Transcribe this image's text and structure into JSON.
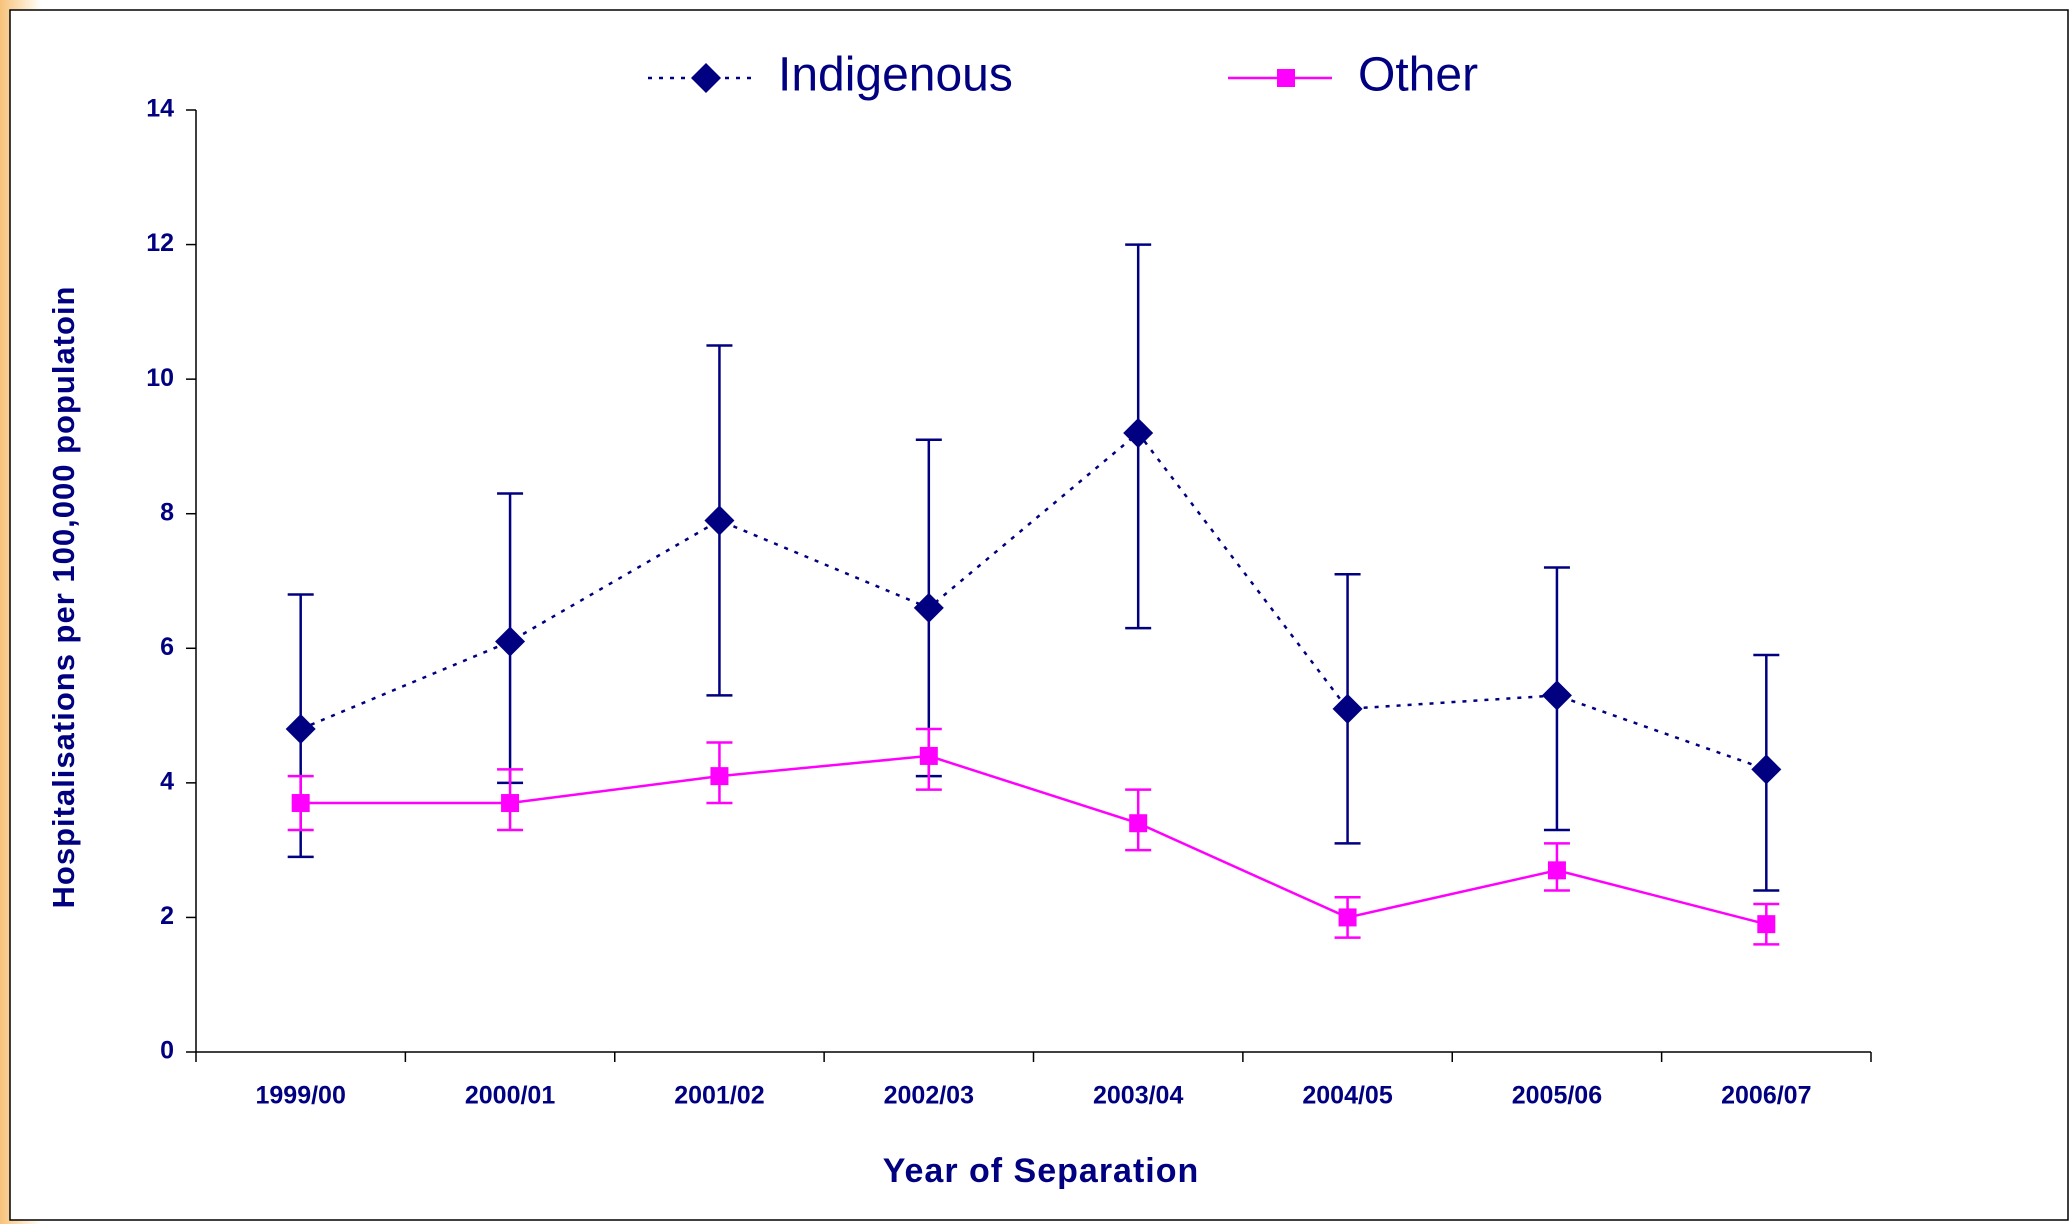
{
  "chart_data": {
    "type": "line",
    "x_label": "Year of Separation",
    "y_label": "Hospitalisations per 100,000 populatoin",
    "categories": [
      "1999/00",
      "2000/01",
      "2001/02",
      "2002/03",
      "2003/04",
      "2004/05",
      "2005/06",
      "2006/07"
    ],
    "series": [
      {
        "name": "Indigenous",
        "color": "#000080",
        "line_style": "dotted",
        "marker": "diamond",
        "values": [
          4.8,
          6.1,
          7.9,
          6.6,
          9.2,
          5.1,
          5.3,
          4.2
        ],
        "ci_low": [
          2.9,
          4.0,
          5.3,
          4.1,
          6.3,
          3.1,
          3.3,
          2.4
        ],
        "ci_high": [
          6.8,
          8.3,
          10.5,
          9.1,
          12.0,
          7.1,
          7.2,
          5.9
        ]
      },
      {
        "name": "Other",
        "color": "#ff00ff",
        "line_style": "solid",
        "marker": "square",
        "values": [
          3.7,
          3.7,
          4.1,
          4.4,
          3.4,
          2.0,
          2.7,
          1.9
        ],
        "ci_low": [
          3.3,
          3.3,
          3.7,
          3.9,
          3.0,
          1.7,
          2.4,
          1.6
        ],
        "ci_high": [
          4.1,
          4.2,
          4.6,
          4.8,
          3.9,
          2.3,
          3.1,
          2.2
        ]
      }
    ],
    "ylim": [
      0,
      14
    ],
    "yticks": [
      0,
      2,
      4,
      6,
      8,
      10,
      12,
      14
    ],
    "grid": false,
    "legend": "top"
  }
}
